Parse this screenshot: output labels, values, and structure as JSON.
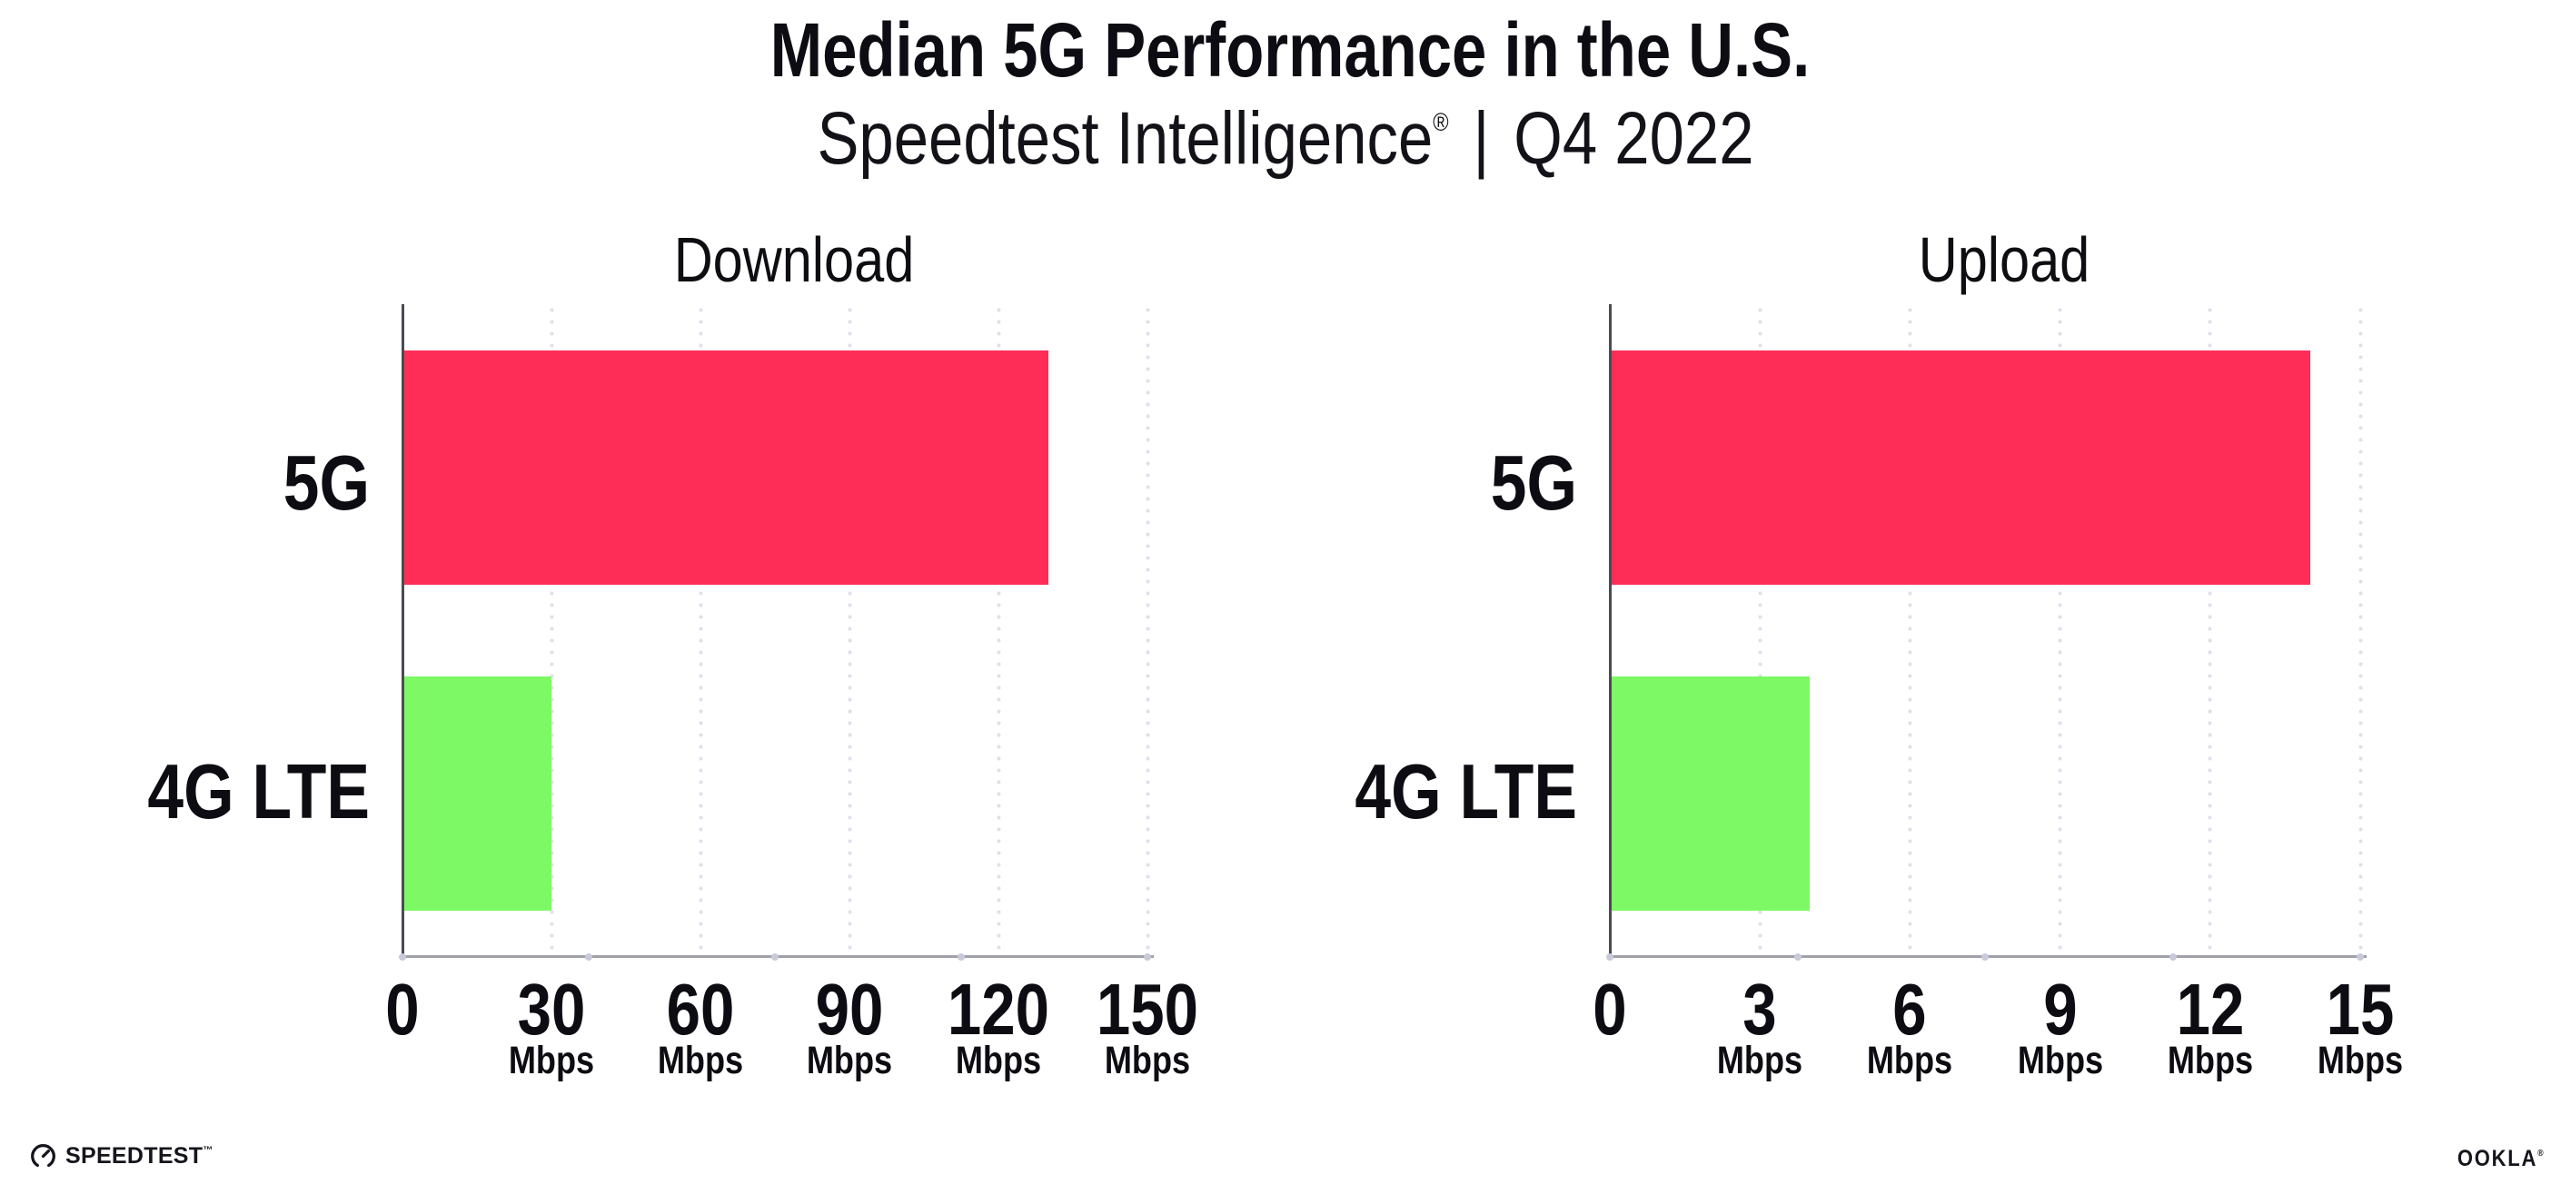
{
  "header": {
    "title": "Median 5G Performance in the U.S.",
    "subtitle_brand": "Speedtest Intelligence",
    "subtitle_reg": "®",
    "subtitle_separator": "|",
    "subtitle_period": "Q4 2022"
  },
  "chart_data": [
    {
      "type": "bar",
      "orientation": "horizontal",
      "title": "Download",
      "categories": [
        "5G",
        "4G LTE"
      ],
      "values": [
        130,
        30
      ],
      "unit": "Mbps",
      "xlim": [
        0,
        150
      ],
      "xticks": [
        0,
        30,
        60,
        90,
        120,
        150
      ],
      "grid": "dotted-vertical",
      "legend": "none"
    },
    {
      "type": "bar",
      "orientation": "horizontal",
      "title": "Upload",
      "categories": [
        "5G",
        "4G LTE"
      ],
      "values": [
        14,
        4
      ],
      "unit": "Mbps",
      "xlim": [
        0,
        15
      ],
      "xticks": [
        0,
        3,
        6,
        9,
        12,
        15
      ],
      "grid": "dotted-vertical",
      "legend": "none"
    }
  ],
  "colors": {
    "bar_5g": "#fd2d58",
    "bar_4g_lte": "#7ef966",
    "grid_dot": "#dee0eb",
    "axis_left": "#4b4b52",
    "axis_bottom": "#a0a0a8",
    "axis_quarter_dot": "#c9cad8",
    "text": "#0c0c12"
  },
  "footer": {
    "speedtest_label": "SPEEDTEST",
    "speedtest_tm": "™",
    "ookla_label": "OOKLA",
    "ookla_reg": "®"
  }
}
